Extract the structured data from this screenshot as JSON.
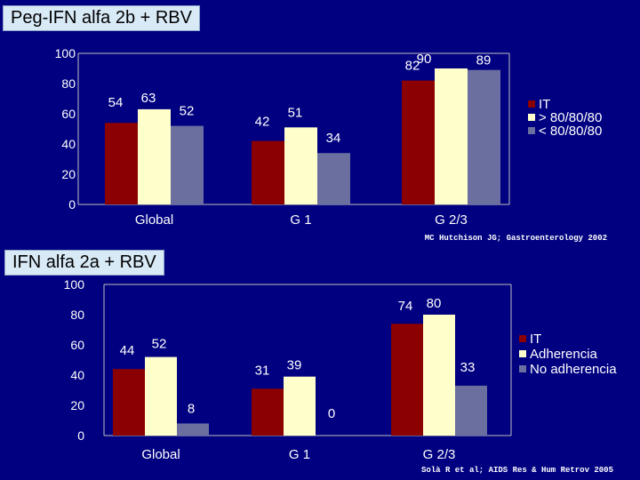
{
  "chart_data": [
    {
      "type": "bar",
      "title": "Peg-IFN alfa 2b + RBV",
      "categories": [
        "Global",
        "G 1",
        "G 2/3"
      ],
      "series": [
        {
          "name": "IT",
          "values": [
            54,
            42,
            82
          ]
        },
        {
          "name": "> 80/80/80",
          "values": [
            63,
            51,
            90
          ]
        },
        {
          "name": "< 80/80/80",
          "values": [
            52,
            34,
            89
          ]
        }
      ],
      "y_ticks": [
        "100",
        "80",
        "60",
        "40",
        "20",
        "0"
      ],
      "ylim": [
        0,
        100
      ],
      "grid": false,
      "legend": "right",
      "source": "MC Hutchison JG; Gastroenterology 2002"
    },
    {
      "type": "bar",
      "title": "IFN alfa 2a + RBV",
      "categories": [
        "Global",
        "G 1",
        "G 2/3"
      ],
      "series": [
        {
          "name": "IT",
          "values": [
            44,
            31,
            74
          ]
        },
        {
          "name": "Adherencia",
          "values": [
            52,
            39,
            80
          ]
        },
        {
          "name": "No adherencia",
          "values": [
            8,
            0,
            33
          ]
        }
      ],
      "y_ticks": [
        "100",
        "80",
        "60",
        "40",
        "20",
        "0"
      ],
      "ylim": [
        0,
        100
      ],
      "grid": false,
      "legend": "right",
      "source": "Solà R et al; AIDS Res & Hum Retrov 2005"
    }
  ],
  "colors": {
    "background": "#000080",
    "series": [
      "#8b0000",
      "#ffffcc",
      "#6a6fa0"
    ]
  }
}
